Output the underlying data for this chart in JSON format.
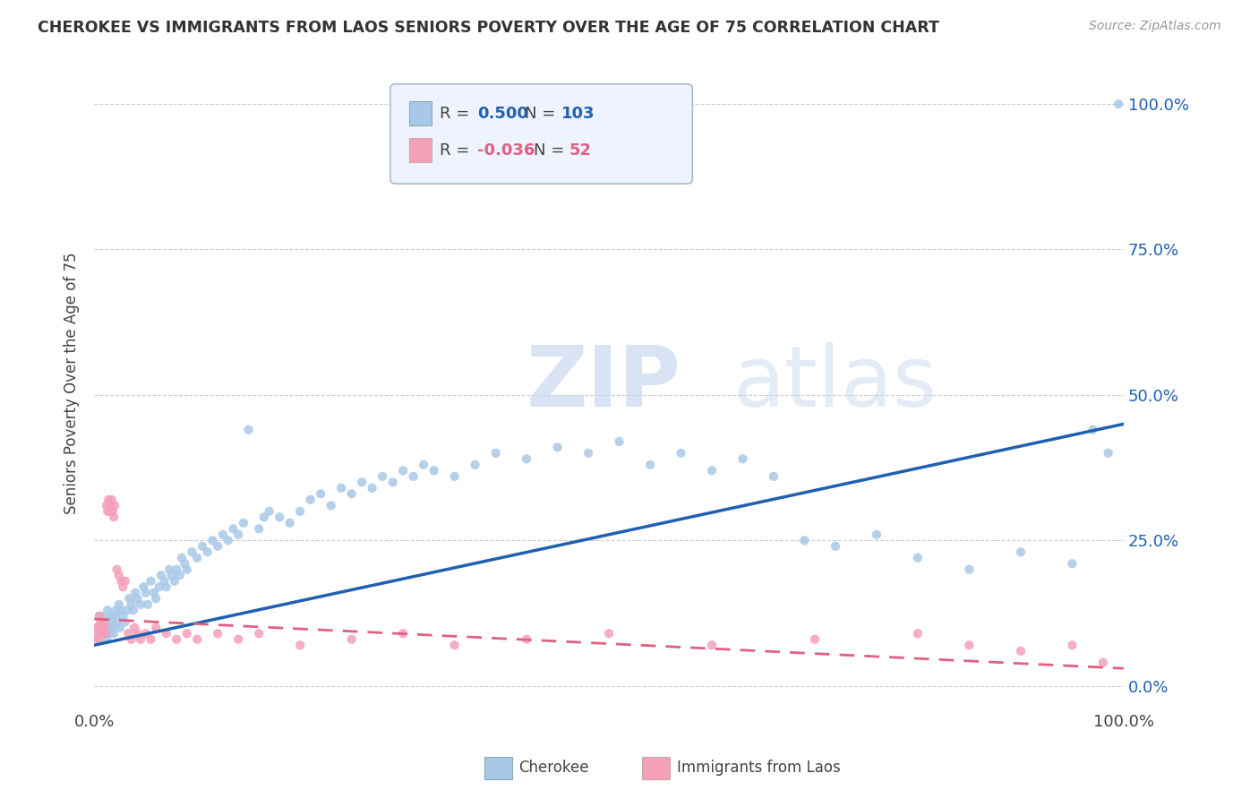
{
  "title": "CHEROKEE VS IMMIGRANTS FROM LAOS SENIORS POVERTY OVER THE AGE OF 75 CORRELATION CHART",
  "source": "Source: ZipAtlas.com",
  "ylabel": "Seniors Poverty Over the Age of 75",
  "xlim": [
    0.0,
    1.0
  ],
  "ylim": [
    -0.04,
    1.08
  ],
  "xticks": [
    0.0,
    0.25,
    0.5,
    0.75,
    1.0
  ],
  "xticklabels": [
    "0.0%",
    "",
    "",
    "",
    "100.0%"
  ],
  "yticks": [
    0.0,
    0.25,
    0.5,
    0.75,
    1.0
  ],
  "yticklabels": [
    "0.0%",
    "25.0%",
    "50.0%",
    "75.0%",
    "100.0%"
  ],
  "cherokee_color": "#A8C8E8",
  "laos_color": "#F4A0B8",
  "trendline_cherokee_color": "#2060B0",
  "trendline_laos_color": "#E06080",
  "cherokee_R": "0.500",
  "cherokee_N": "103",
  "laos_R": "-0.036",
  "laos_N": "52",
  "cherokee_x": [
    0.003,
    0.004,
    0.005,
    0.006,
    0.007,
    0.008,
    0.009,
    0.01,
    0.011,
    0.012,
    0.013,
    0.014,
    0.015,
    0.016,
    0.017,
    0.018,
    0.019,
    0.02,
    0.021,
    0.022,
    0.024,
    0.025,
    0.026,
    0.028,
    0.03,
    0.032,
    0.034,
    0.036,
    0.038,
    0.04,
    0.042,
    0.045,
    0.048,
    0.05,
    0.052,
    0.055,
    0.058,
    0.06,
    0.063,
    0.065,
    0.068,
    0.07,
    0.073,
    0.075,
    0.078,
    0.08,
    0.083,
    0.085,
    0.088,
    0.09,
    0.095,
    0.1,
    0.105,
    0.11,
    0.115,
    0.12,
    0.125,
    0.13,
    0.135,
    0.14,
    0.145,
    0.15,
    0.16,
    0.165,
    0.17,
    0.18,
    0.19,
    0.2,
    0.21,
    0.22,
    0.23,
    0.24,
    0.25,
    0.26,
    0.27,
    0.28,
    0.29,
    0.3,
    0.31,
    0.32,
    0.33,
    0.35,
    0.37,
    0.39,
    0.42,
    0.45,
    0.48,
    0.51,
    0.54,
    0.57,
    0.6,
    0.63,
    0.66,
    0.69,
    0.72,
    0.76,
    0.8,
    0.85,
    0.9,
    0.95,
    0.97,
    0.985,
    0.995
  ],
  "cherokee_y": [
    0.1,
    0.08,
    0.12,
    0.09,
    0.11,
    0.1,
    0.12,
    0.09,
    0.11,
    0.08,
    0.13,
    0.1,
    0.09,
    0.12,
    0.11,
    0.1,
    0.09,
    0.12,
    0.13,
    0.11,
    0.14,
    0.1,
    0.13,
    0.12,
    0.11,
    0.13,
    0.15,
    0.14,
    0.13,
    0.16,
    0.15,
    0.14,
    0.17,
    0.16,
    0.14,
    0.18,
    0.16,
    0.15,
    0.17,
    0.19,
    0.18,
    0.17,
    0.2,
    0.19,
    0.18,
    0.2,
    0.19,
    0.22,
    0.21,
    0.2,
    0.23,
    0.22,
    0.24,
    0.23,
    0.25,
    0.24,
    0.26,
    0.25,
    0.27,
    0.26,
    0.28,
    0.44,
    0.27,
    0.29,
    0.3,
    0.29,
    0.28,
    0.3,
    0.32,
    0.33,
    0.31,
    0.34,
    0.33,
    0.35,
    0.34,
    0.36,
    0.35,
    0.37,
    0.36,
    0.38,
    0.37,
    0.36,
    0.38,
    0.4,
    0.39,
    0.41,
    0.4,
    0.42,
    0.38,
    0.4,
    0.37,
    0.39,
    0.36,
    0.25,
    0.24,
    0.26,
    0.22,
    0.2,
    0.23,
    0.21,
    0.44,
    0.4,
    1.0
  ],
  "laos_x": [
    0.002,
    0.003,
    0.004,
    0.005,
    0.006,
    0.007,
    0.008,
    0.009,
    0.01,
    0.011,
    0.012,
    0.013,
    0.014,
    0.015,
    0.016,
    0.017,
    0.018,
    0.019,
    0.02,
    0.022,
    0.024,
    0.026,
    0.028,
    0.03,
    0.033,
    0.036,
    0.039,
    0.042,
    0.045,
    0.05,
    0.055,
    0.06,
    0.07,
    0.08,
    0.09,
    0.1,
    0.12,
    0.14,
    0.16,
    0.2,
    0.25,
    0.3,
    0.35,
    0.42,
    0.5,
    0.6,
    0.7,
    0.8,
    0.85,
    0.9,
    0.95,
    0.98
  ],
  "laos_y": [
    0.09,
    0.1,
    0.08,
    0.12,
    0.11,
    0.1,
    0.09,
    0.11,
    0.1,
    0.09,
    0.31,
    0.3,
    0.32,
    0.31,
    0.3,
    0.32,
    0.3,
    0.29,
    0.31,
    0.2,
    0.19,
    0.18,
    0.17,
    0.18,
    0.09,
    0.08,
    0.1,
    0.09,
    0.08,
    0.09,
    0.08,
    0.1,
    0.09,
    0.08,
    0.09,
    0.08,
    0.09,
    0.08,
    0.09,
    0.07,
    0.08,
    0.09,
    0.07,
    0.08,
    0.09,
    0.07,
    0.08,
    0.09,
    0.07,
    0.06,
    0.07,
    0.04
  ]
}
